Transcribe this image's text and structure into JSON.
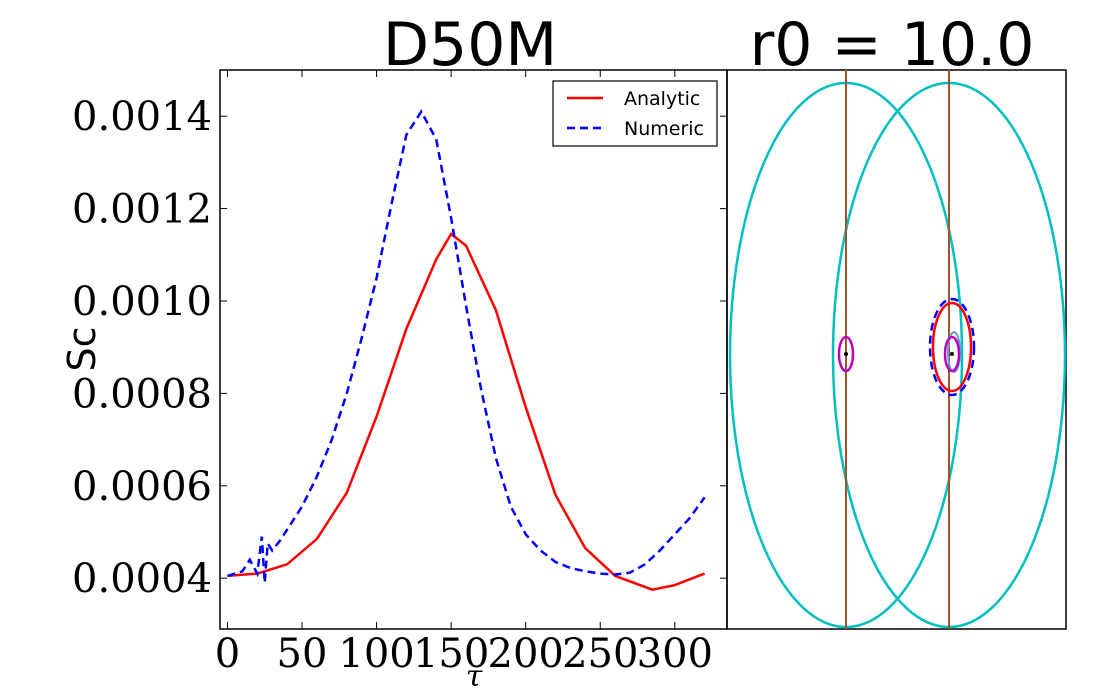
{
  "chart_data": [
    {
      "type": "line",
      "title": "D50M",
      "xlabel": "τ",
      "ylabel": "Sc",
      "xlim": [
        -5,
        335
      ],
      "ylim": [
        0.00029,
        0.0015
      ],
      "xticks": [
        0,
        50,
        100,
        150,
        200,
        250,
        300
      ],
      "xtick_labels": [
        "0",
        "50",
        "100",
        "150",
        "200",
        "250",
        "300"
      ],
      "yticks": [
        0.0004,
        0.0006,
        0.0008,
        0.001,
        0.0012,
        0.0014
      ],
      "ytick_labels": [
        "0.0004",
        "0.0006",
        "0.0008",
        "0.0010",
        "0.0012",
        "0.0014"
      ],
      "legend_position": "top-right",
      "series": [
        {
          "name": "Analytic",
          "color": "#ff0000",
          "style": "solid",
          "x": [
            0,
            20,
            40,
            60,
            80,
            100,
            120,
            140,
            150,
            160,
            180,
            200,
            220,
            240,
            260,
            285,
            300,
            320
          ],
          "y": [
            0.000405,
            0.00041,
            0.00043,
            0.000485,
            0.000585,
            0.00075,
            0.00094,
            0.00109,
            0.001145,
            0.00112,
            0.00098,
            0.00077,
            0.00058,
            0.000465,
            0.000405,
            0.000375,
            0.000385,
            0.00041
          ]
        },
        {
          "name": "Numeric",
          "color": "#0000ff",
          "style": "dashed",
          "x": [
            0,
            10,
            15,
            20,
            23,
            25,
            27,
            30,
            35,
            40,
            50,
            60,
            70,
            80,
            90,
            100,
            110,
            120,
            130,
            140,
            150,
            160,
            170,
            180,
            190,
            200,
            210,
            220,
            230,
            240,
            250,
            260,
            270,
            280,
            290,
            300,
            310,
            320
          ],
          "y": [
            0.000405,
            0.000415,
            0.00044,
            0.00041,
            0.00049,
            0.00039,
            0.000475,
            0.00046,
            0.00048,
            0.000505,
            0.000555,
            0.00062,
            0.0007,
            0.0008,
            0.00092,
            0.00105,
            0.00121,
            0.00136,
            0.00141,
            0.00135,
            0.00118,
            0.00099,
            0.00081,
            0.00066,
            0.000555,
            0.000495,
            0.00046,
            0.000435,
            0.000422,
            0.000415,
            0.00041,
            0.000408,
            0.000412,
            0.00043,
            0.00046,
            0.000495,
            0.00053,
            0.000575
          ]
        }
      ]
    },
    {
      "type": "orbit-diagram",
      "title": "r0 = 10.0",
      "axes_ticks": "none",
      "elements": [
        {
          "name": "left-vertical-line",
          "color": "#a0522d"
        },
        {
          "name": "right-vertical-line",
          "color": "#a0522d"
        },
        {
          "name": "left-large-ellipse",
          "color": "#00bfbf"
        },
        {
          "name": "right-large-ellipse",
          "color": "#00bfbf"
        },
        {
          "name": "red-orbit",
          "color": "#ff0000"
        },
        {
          "name": "blue-dashed-orbit",
          "color": "#0000ff"
        },
        {
          "name": "left-small-ellipse",
          "color": "#bf00bf"
        },
        {
          "name": "right-small-ellipse",
          "color": "#bf00bf"
        }
      ]
    }
  ]
}
